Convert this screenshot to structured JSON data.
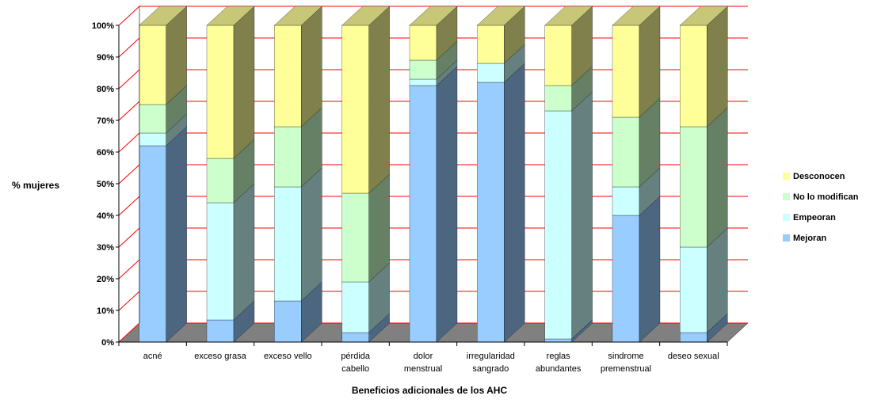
{
  "chart_data": {
    "type": "bar",
    "stacked": true,
    "stacking": "percent",
    "three_d": true,
    "title": "",
    "xlabel": "Beneficios adicionales de los AHC",
    "ylabel": "% mujeres",
    "ylim": [
      0,
      100
    ],
    "y_tick_labels": [
      "0%",
      "10%",
      "20%",
      "30%",
      "40%",
      "50%",
      "60%",
      "70%",
      "80%",
      "90%",
      "100%"
    ],
    "grid": true,
    "legend_position": "right",
    "categories": [
      [
        "acné"
      ],
      [
        "exceso grasa"
      ],
      [
        "exceso vello"
      ],
      [
        "pérdida",
        "cabello"
      ],
      [
        "dolor",
        "menstrual"
      ],
      [
        "irregularidad",
        "sangrado"
      ],
      [
        "reglas",
        "abundantes"
      ],
      [
        "sindrome",
        "premenstrual"
      ],
      [
        "deseo sexual"
      ]
    ],
    "series": [
      {
        "name": "Mejoran",
        "color": "#99ccff",
        "values": [
          62,
          7,
          13,
          3,
          81,
          82,
          1,
          40,
          3
        ]
      },
      {
        "name": "Empeoran",
        "color": "#ccffff",
        "values": [
          4,
          37,
          36,
          16,
          2,
          6,
          72,
          9,
          27
        ]
      },
      {
        "name": "No lo modifican",
        "color": "#ccffcc",
        "values": [
          9,
          14,
          19,
          28,
          6,
          0,
          8,
          22,
          38
        ]
      },
      {
        "name": "Desconocen",
        "color": "#ffff99",
        "values": [
          25,
          42,
          32,
          53,
          11,
          12,
          19,
          29,
          32
        ]
      }
    ],
    "legend_order": [
      "Desconocen",
      "No lo modifican",
      "Empeoran",
      "Mejoran"
    ],
    "colors": {
      "gridline": "#ff0000",
      "floor": "#808080",
      "wall_edge": "#000000"
    }
  }
}
